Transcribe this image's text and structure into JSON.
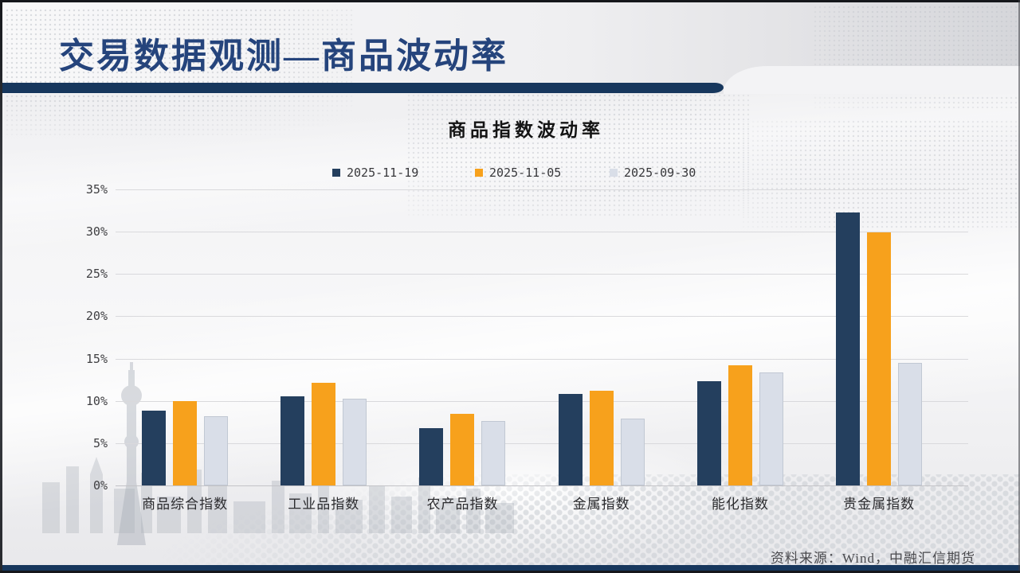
{
  "slide": {
    "title": "交易数据观测—商品波动率",
    "source_note": "资料来源：Wind，中融汇信期货"
  },
  "colors": {
    "title_blue": "#25447c",
    "rule_navy": "#17375d",
    "series_dark_navy": "#243f5e",
    "series_orange": "#f7a11c",
    "series_light_gray_blue": "#d9dee8"
  },
  "chart_data": {
    "type": "bar",
    "title": "商品指数波动率",
    "categories": [
      "商品综合指数",
      "工业品指数",
      "农产品指数",
      "金属指数",
      "能化指数",
      "贵金属指数"
    ],
    "series": [
      {
        "name": "2025-11-19",
        "color": "#243f5e",
        "values": [
          8.8,
          10.5,
          6.8,
          10.8,
          12.3,
          32.3
        ]
      },
      {
        "name": "2025-11-05",
        "color": "#f7a11c",
        "values": [
          10.0,
          12.1,
          8.5,
          11.2,
          14.2,
          29.9
        ]
      },
      {
        "name": "2025-09-30",
        "color": "#d9dee8",
        "values": [
          8.2,
          10.3,
          7.6,
          7.9,
          13.4,
          14.5
        ]
      }
    ],
    "ylim": [
      0,
      35
    ],
    "ytick_step": 5,
    "ytick_format": "percent",
    "xlabel": "",
    "ylabel": "",
    "grid": true,
    "legend_position": "top"
  }
}
